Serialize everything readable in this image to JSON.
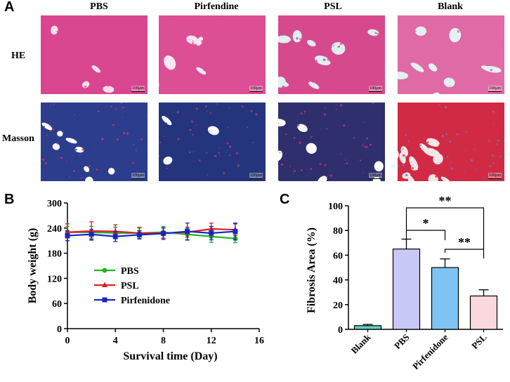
{
  "panel_a": {
    "letter": "A",
    "columns": [
      "PBS",
      "Pirfendine",
      "PSL",
      "Blank"
    ],
    "rows": [
      "HE",
      "Masson"
    ],
    "scale_bar": "100μm",
    "he_tissue": [
      {
        "bg": "#f6dcea",
        "fg": "#d9468f",
        "density": 0.82
      },
      {
        "bg": "#f8e6f0",
        "fg": "#dc4f95",
        "density": 0.55
      },
      {
        "bg": "#dfeff0",
        "fg": "#d64a8d",
        "density": 0.48
      },
      {
        "bg": "#e3f1f2",
        "fg": "#e06aa5",
        "density": 0.4
      }
    ],
    "masson_tissue": [
      {
        "bg": "#ffffff",
        "fg": "#2b3d8c",
        "accent": "#c0385f",
        "density": 0.72
      },
      {
        "bg": "#ffffff",
        "fg": "#24357e",
        "accent": "#b23a6a",
        "density": 0.74
      },
      {
        "bg": "#ffffff",
        "fg": "#2f2f6e",
        "accent": "#c4356a",
        "density": 0.5
      },
      {
        "bg": "#f4e6e8",
        "fg": "#d12a45",
        "accent": "#5d7fa8",
        "density": 0.45
      }
    ]
  },
  "panel_b": {
    "letter": "B",
    "chart_data": {
      "type": "line",
      "xlabel": "Survival time (Day)",
      "ylabel": "Body weight (g)",
      "xlim": [
        0,
        16
      ],
      "ylim": [
        0,
        300
      ],
      "xticks": [
        "0",
        "4",
        "8",
        "12",
        "16"
      ],
      "yticks": [
        "0",
        "60",
        "120",
        "180",
        "240",
        "300"
      ],
      "x": [
        0,
        2,
        4,
        6,
        8,
        10,
        12,
        14
      ],
      "series": [
        {
          "name": "PBS",
          "color": "#22b422",
          "marker": "circle",
          "values": [
            230,
            230,
            228,
            228,
            230,
            225,
            220,
            215
          ],
          "errors": [
            14,
            14,
            14,
            12,
            14,
            14,
            14,
            10
          ]
        },
        {
          "name": "PSL",
          "color": "#e02020",
          "marker": "triangle",
          "values": [
            230,
            233,
            232,
            228,
            228,
            230,
            238,
            236
          ],
          "errors": [
            20,
            22,
            16,
            14,
            12,
            12,
            14,
            14
          ]
        },
        {
          "name": "Pirfenidone",
          "color": "#1a24c8",
          "marker": "square",
          "values": [
            222,
            225,
            220,
            224,
            227,
            232,
            228,
            232
          ],
          "errors": [
            12,
            12,
            12,
            10,
            14,
            20,
            16,
            20
          ]
        }
      ]
    }
  },
  "panel_c": {
    "letter": "C",
    "chart_data": {
      "type": "bar",
      "categories": [
        "Blank",
        "PBS",
        "Pirfenidone",
        "PSL"
      ],
      "values": [
        3,
        65,
        50,
        27
      ],
      "errors": [
        1,
        8,
        7,
        5
      ],
      "colors": [
        "#5fd0c4",
        "#c8c8f6",
        "#7ec4f2",
        "#f9d8de"
      ],
      "ylabel": "Fibrosis Area (%)",
      "ylim": [
        0,
        100
      ],
      "yticks": [
        "0",
        "20",
        "40",
        "60",
        "80",
        "100"
      ],
      "significance": [
        {
          "from": "PBS",
          "to": "PSL",
          "label": "**"
        },
        {
          "from": "PBS",
          "to": "Pirfenidone",
          "label": "*"
        },
        {
          "from": "Pirfenidone",
          "to": "PSL",
          "label": "**"
        }
      ]
    }
  }
}
